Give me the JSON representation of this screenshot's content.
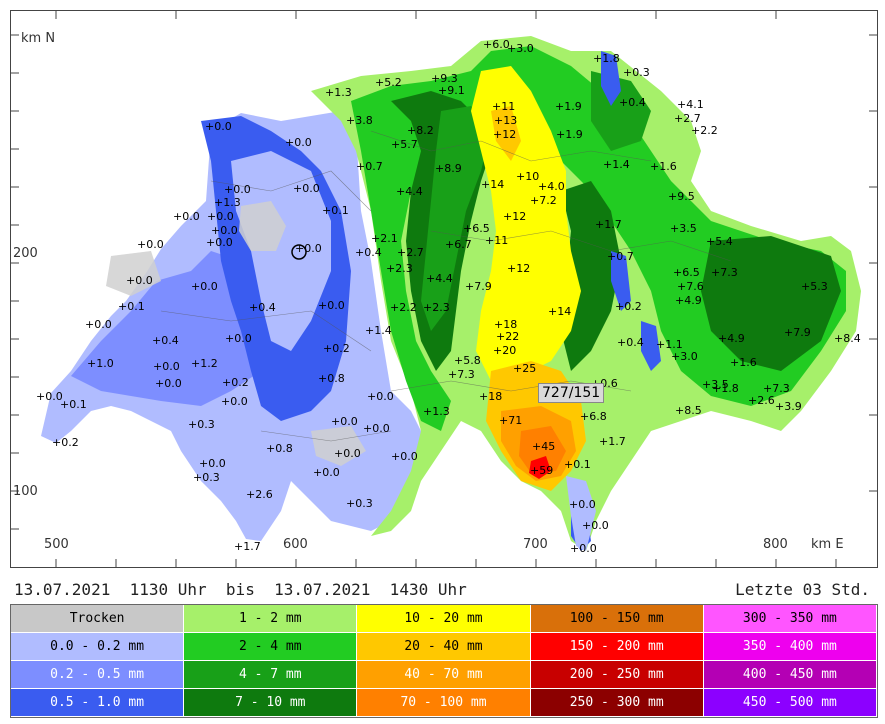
{
  "map": {
    "axis": {
      "north_label": "km N",
      "east_label": "km E",
      "y_ticks": [
        "200",
        "100"
      ],
      "x_ticks": [
        "500",
        "600",
        "700",
        "800"
      ]
    },
    "stations": [
      {
        "label": "6.0"
      },
      {
        "label": "3.0"
      },
      {
        "label": "1.8"
      },
      {
        "label": "0.3"
      },
      {
        "label": "5.2"
      },
      {
        "label": "9.3"
      },
      {
        "label": "9.1"
      },
      {
        "label": "1.3"
      },
      {
        "label": "0.4"
      },
      {
        "label": "4.1"
      },
      {
        "label": "11"
      },
      {
        "label": "1.9"
      },
      {
        "label": "2.7"
      },
      {
        "label": "3.8"
      },
      {
        "label": "13"
      },
      {
        "label": "2.2"
      },
      {
        "label": "8.2"
      },
      {
        "label": "12"
      },
      {
        "label": "1.9"
      },
      {
        "label": "5.7"
      },
      {
        "label": "0.0"
      },
      {
        "label": "0.0"
      },
      {
        "label": "0.7"
      },
      {
        "label": "8.9"
      },
      {
        "label": "10"
      },
      {
        "label": "1.4"
      },
      {
        "label": "1.6"
      },
      {
        "label": "4.4"
      },
      {
        "label": "14"
      },
      {
        "label": "4.0"
      },
      {
        "label": "0.0"
      },
      {
        "label": "0.0"
      },
      {
        "label": "7.2"
      },
      {
        "label": "9.5"
      },
      {
        "label": "1.3"
      },
      {
        "label": "0.1"
      },
      {
        "label": "0.0"
      },
      {
        "label": "0.0"
      },
      {
        "label": "12"
      },
      {
        "label": "1.7"
      },
      {
        "label": "3.5"
      },
      {
        "label": "6.5"
      },
      {
        "label": "2.1"
      },
      {
        "label": "0.0"
      },
      {
        "label": "0.0"
      },
      {
        "label": "6.7"
      },
      {
        "label": "11"
      },
      {
        "label": "5.4"
      },
      {
        "label": "0.0"
      },
      {
        "label": "0.0"
      },
      {
        "label": "0.4"
      },
      {
        "label": "2.7"
      },
      {
        "label": "0.7"
      },
      {
        "label": "2.3"
      },
      {
        "label": "12"
      },
      {
        "label": "6.5"
      },
      {
        "label": "7.3"
      },
      {
        "label": "0.0"
      },
      {
        "label": "4.4"
      },
      {
        "label": "7.9"
      },
      {
        "label": "7.6"
      },
      {
        "label": "5.3"
      },
      {
        "label": "0.0"
      },
      {
        "label": "4.9"
      },
      {
        "label": "0.1"
      },
      {
        "label": "0.4"
      },
      {
        "label": "0.0"
      },
      {
        "label": "2.2"
      },
      {
        "label": "2.3"
      },
      {
        "label": "14"
      },
      {
        "label": "0.2"
      },
      {
        "label": "0.0"
      },
      {
        "label": "1.4"
      },
      {
        "label": "18"
      },
      {
        "label": "7.9"
      },
      {
        "label": "8.4"
      },
      {
        "label": "0.4"
      },
      {
        "label": "0.0"
      },
      {
        "label": "22"
      },
      {
        "label": "0.4"
      },
      {
        "label": "1.1"
      },
      {
        "label": "4.9"
      },
      {
        "label": "1.0"
      },
      {
        "label": "0.0"
      },
      {
        "label": "0.2"
      },
      {
        "label": "20"
      },
      {
        "label": "5.8"
      },
      {
        "label": "3.0"
      },
      {
        "label": "1.6"
      },
      {
        "label": "1.2"
      },
      {
        "label": "7.3"
      },
      {
        "label": "25"
      },
      {
        "label": "0.0"
      },
      {
        "label": "0.2"
      },
      {
        "label": "0.8"
      },
      {
        "label": "0.6"
      },
      {
        "label": "3.5"
      },
      {
        "label": "1.8"
      },
      {
        "label": "7.3"
      },
      {
        "label": "0.0"
      },
      {
        "label": "0.1"
      },
      {
        "label": "0.0"
      },
      {
        "label": "18"
      },
      {
        "label": "2.6"
      },
      {
        "label": "0.0"
      },
      {
        "label": "1.3"
      },
      {
        "label": "3.9"
      },
      {
        "label": "8.5"
      },
      {
        "label": "0.3"
      },
      {
        "label": "0.0"
      },
      {
        "label": "71"
      },
      {
        "label": "6.8"
      },
      {
        "label": "0.2"
      },
      {
        "label": "0.0"
      },
      {
        "label": "0.8"
      },
      {
        "label": "0.0"
      },
      {
        "label": "1.7"
      },
      {
        "label": "0.0"
      },
      {
        "label": "45"
      },
      {
        "label": "0.0"
      },
      {
        "label": "0.3"
      },
      {
        "label": "0.0"
      },
      {
        "label": "59"
      },
      {
        "label": "0.1"
      },
      {
        "label": "2.6"
      },
      {
        "label": "0.3"
      },
      {
        "label": "0.0"
      },
      {
        "label": "0.0"
      },
      {
        "label": "1.7"
      },
      {
        "label": "0.0"
      }
    ],
    "callout": "727/151"
  },
  "timeline": {
    "period": "13.07.2021  1130 Uhr  bis  13.07.2021  1430 Uhr",
    "window": "Letzte 03 Std."
  },
  "legend": [
    {
      "label": "Trocken",
      "bg": "#c8c8c8",
      "fg": "#000"
    },
    {
      "label": "1 - 2 mm",
      "bg": "#a6f06a",
      "fg": "#000"
    },
    {
      "label": "10 - 20 mm",
      "bg": "#ffff00",
      "fg": "#000"
    },
    {
      "label": "100 - 150 mm",
      "bg": "#d9700a",
      "fg": "#000"
    },
    {
      "label": "300 - 350 mm",
      "bg": "#ff55ff",
      "fg": "#000"
    },
    {
      "label": "0.0 - 0.2 mm",
      "bg": "#b0bcff",
      "fg": "#000"
    },
    {
      "label": "2 - 4 mm",
      "bg": "#22cc22",
      "fg": "#000"
    },
    {
      "label": "20 - 40 mm",
      "bg": "#ffc800",
      "fg": "#000"
    },
    {
      "label": "150 - 200 mm",
      "bg": "#ff0000",
      "fg": "#fff"
    },
    {
      "label": "350 - 400 mm",
      "bg": "#ee00ee",
      "fg": "#fff"
    },
    {
      "label": "0.2 - 0.5 mm",
      "bg": "#7d8eff",
      "fg": "#fff"
    },
    {
      "label": "4 - 7 mm",
      "bg": "#18a018",
      "fg": "#fff"
    },
    {
      "label": "40 - 70 mm",
      "bg": "#ffa000",
      "fg": "#fff"
    },
    {
      "label": "200 - 250 mm",
      "bg": "#c80000",
      "fg": "#fff"
    },
    {
      "label": "400 - 450 mm",
      "bg": "#b400b4",
      "fg": "#fff"
    },
    {
      "label": "0.5 - 1.0 mm",
      "bg": "#3a5cf0",
      "fg": "#fff"
    },
    {
      "label": "7 - 10 mm",
      "bg": "#0e7a0e",
      "fg": "#fff"
    },
    {
      "label": "70 - 100 mm",
      "bg": "#ff8000",
      "fg": "#fff"
    },
    {
      "label": "250 - 300 mm",
      "bg": "#8c0000",
      "fg": "#fff"
    },
    {
      "label": "450 - 500 mm",
      "bg": "#8c00ff",
      "fg": "#fff"
    }
  ]
}
